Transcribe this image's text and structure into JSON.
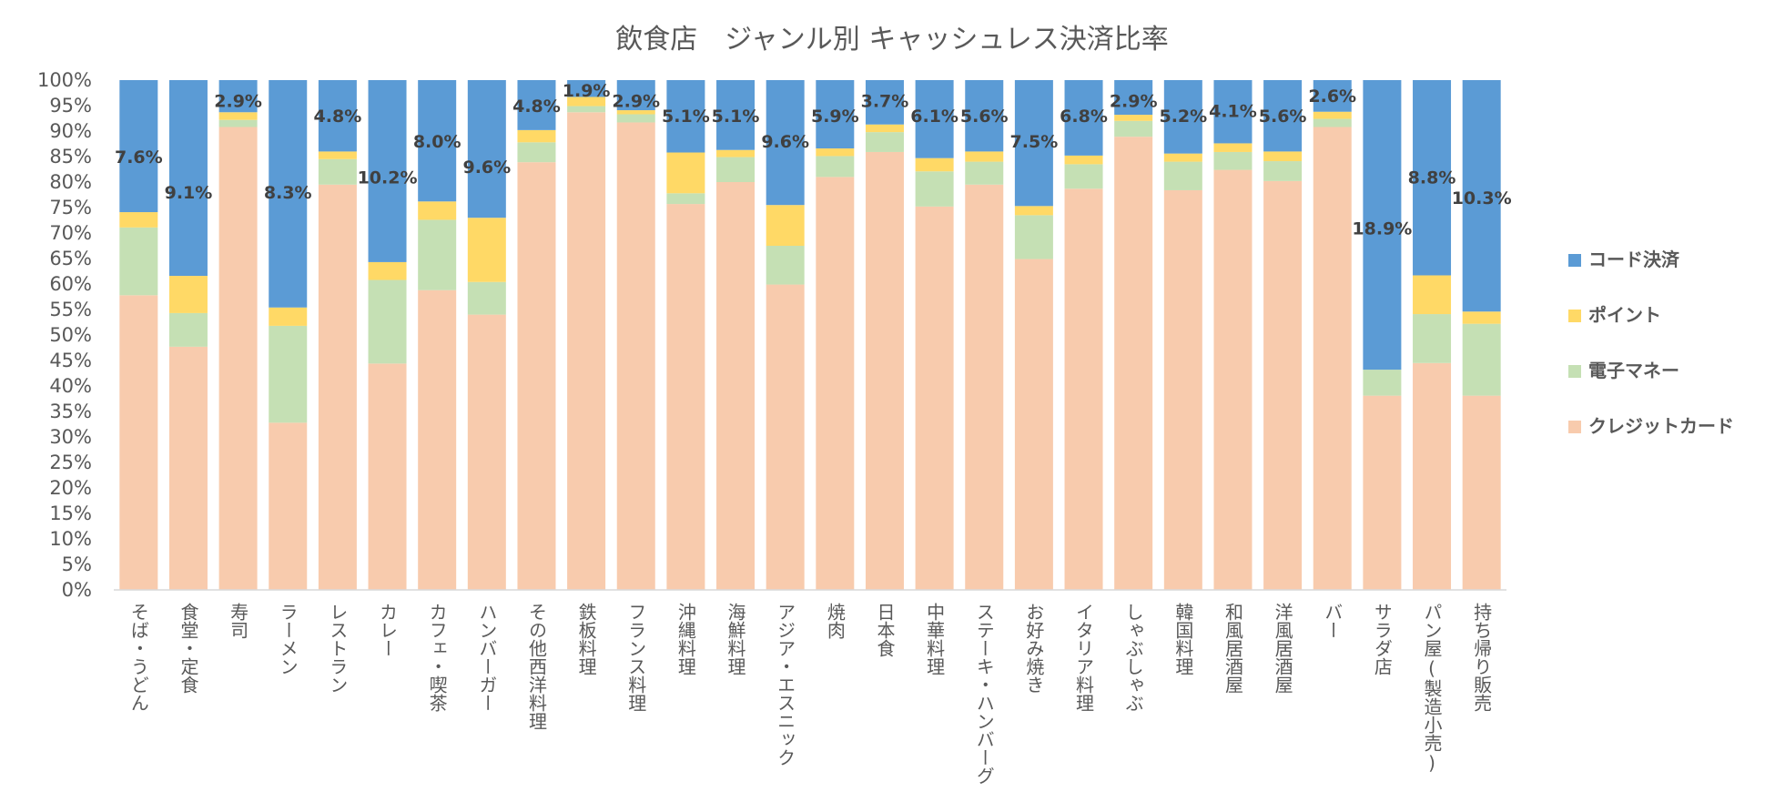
{
  "chart_data": {
    "type": "bar",
    "stacked": true,
    "percent_stacked": true,
    "title": "飲食店　ジャンル別 キャッシュレス決済比率",
    "xlabel": "",
    "ylabel": "",
    "ylim": [
      0,
      100
    ],
    "y_ticks": [
      "0%",
      "5%",
      "10%",
      "15%",
      "20%",
      "25%",
      "30%",
      "35%",
      "40%",
      "45%",
      "50%",
      "55%",
      "60%",
      "65%",
      "70%",
      "75%",
      "80%",
      "85%",
      "90%",
      "95%",
      "100%"
    ],
    "grid": false,
    "legend_position": "right",
    "categories": [
      "そば・うどん",
      "食堂・定食",
      "寿司",
      "ラーメン",
      "レストラン",
      "カレー",
      "カフェ・喫茶",
      "ハンバーガー",
      "その他西洋料理",
      "鉄板料理",
      "フランス料理",
      "沖縄料理",
      "海鮮料理",
      "アジア・エスニック",
      "焼肉",
      "日本食",
      "中華料理",
      "ステーキ・ハンバーグ",
      "お好み焼き",
      "イタリア料理",
      "しゃぶしゃぶ",
      "韓国料理",
      "和風居酒屋",
      "洋風居酒屋",
      "バー",
      "サラダ店",
      "パン屋(製造小売)",
      "持ち帰り販売"
    ],
    "series": [
      {
        "name": "クレジットカード",
        "color": "#F8CBAD",
        "values": [
          57.8,
          47.7,
          90.8,
          32.8,
          79.5,
          44.4,
          58.8,
          54.0,
          83.9,
          93.7,
          91.7,
          75.7,
          80.0,
          59.9,
          81.0,
          85.9,
          75.2,
          79.5,
          64.9,
          78.7,
          88.9,
          78.4,
          82.4,
          80.2,
          90.8,
          38.1,
          44.5,
          38.1
        ]
      },
      {
        "name": "電子マネー",
        "color": "#C5E0B4",
        "values": [
          13.3,
          6.6,
          1.4,
          19.0,
          5.0,
          16.4,
          13.8,
          6.4,
          3.9,
          1.2,
          1.6,
          2.1,
          4.9,
          7.6,
          4.1,
          3.9,
          6.9,
          4.5,
          8.6,
          4.8,
          3.1,
          5.6,
          3.5,
          3.9,
          1.6,
          5.1,
          9.6,
          14.1
        ]
      },
      {
        "name": "ポイント",
        "color": "#FFD966",
        "values": [
          3.0,
          7.3,
          1.5,
          3.6,
          1.5,
          3.5,
          3.6,
          12.6,
          2.4,
          1.8,
          0.8,
          8.0,
          1.4,
          8.0,
          1.5,
          1.5,
          2.6,
          2.0,
          1.8,
          1.7,
          1.2,
          1.6,
          1.7,
          1.9,
          1.4,
          0.0,
          7.6,
          2.4
        ]
      },
      {
        "name": "コード決済",
        "color": "#5B9BD5",
        "values": [
          25.9,
          38.4,
          6.3,
          44.6,
          14.0,
          35.7,
          23.8,
          27.0,
          9.8,
          3.3,
          5.9,
          14.2,
          13.7,
          24.5,
          13.4,
          8.7,
          15.3,
          14.0,
          24.7,
          14.8,
          6.8,
          14.4,
          12.4,
          14.0,
          6.2,
          56.8,
          38.3,
          45.4
        ]
      }
    ],
    "data_labels": [
      "7.6%",
      "9.1%",
      "2.9%",
      "8.3%",
      "4.8%",
      "10.2%",
      "8.0%",
      "9.6%",
      "4.8%",
      "1.9%",
      "2.9%",
      "5.1%",
      "5.1%",
      "9.6%",
      "5.9%",
      "3.7%",
      "6.1%",
      "5.6%",
      "7.5%",
      "6.8%",
      "2.9%",
      "5.2%",
      "4.1%",
      "5.6%",
      "2.6%",
      "18.9%",
      "8.8%",
      "10.3%"
    ],
    "data_label_positions": [
      85,
      78,
      96,
      78,
      93,
      81,
      88,
      83,
      95,
      98,
      96,
      93,
      93,
      88,
      93,
      96,
      93,
      93,
      88,
      93,
      96,
      93,
      94,
      93,
      97,
      71,
      81,
      77
    ],
    "legend_order": [
      "コード決済",
      "ポイント",
      "電子マネー",
      "クレジットカード"
    ]
  }
}
